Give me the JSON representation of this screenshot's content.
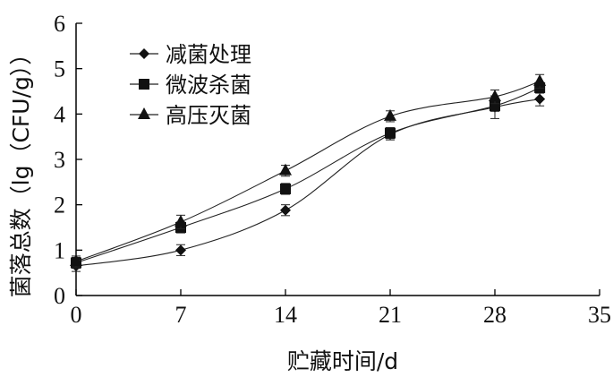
{
  "chart_data": {
    "type": "line",
    "title": "",
    "xlabel": "贮藏时间/d",
    "ylabel": "菌落总数（lg（CFU/g））",
    "xlim": [
      0,
      35
    ],
    "ylim": [
      0,
      6
    ],
    "xticks": [
      0,
      7,
      14,
      21,
      28,
      35
    ],
    "yticks": [
      0,
      1,
      2,
      3,
      4,
      5,
      6
    ],
    "grid": false,
    "legend_position": "top-left",
    "x": [
      0,
      7,
      14,
      21,
      28,
      31
    ],
    "series": [
      {
        "name": "减菌处理",
        "marker": "diamond",
        "values": [
          0.65,
          1.0,
          1.88,
          3.55,
          4.15,
          4.33
        ],
        "errors": [
          0.12,
          0.12,
          0.12,
          0.12,
          0.25,
          0.15
        ]
      },
      {
        "name": "微波杀菌",
        "marker": "square",
        "values": [
          0.72,
          1.5,
          2.35,
          3.58,
          4.18,
          4.58
        ],
        "errors": [
          0.12,
          0.12,
          0.12,
          0.12,
          0.12,
          0.12
        ]
      },
      {
        "name": "高压灭菌",
        "marker": "triangle",
        "values": [
          0.75,
          1.62,
          2.75,
          3.95,
          4.38,
          4.72
        ],
        "errors": [
          0.12,
          0.15,
          0.12,
          0.12,
          0.15,
          0.15
        ]
      }
    ]
  }
}
